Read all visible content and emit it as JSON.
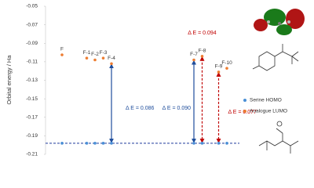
{
  "chart_data": {
    "type": "scatter",
    "y_label": "Orbital energy / Ha",
    "ylim": [
      -0.05,
      -0.21
    ],
    "yticks": [
      -0.05,
      -0.07,
      -0.09,
      -0.11,
      -0.13,
      -0.15,
      -0.17,
      -0.19,
      -0.21
    ],
    "categories": [
      "F",
      null,
      null,
      "F-1",
      "F-2",
      "F-3",
      "F-4",
      null,
      null,
      null,
      null,
      null,
      null,
      null,
      null,
      null,
      "F-7",
      "F-8",
      null,
      "F-9",
      "F-10"
    ],
    "series": [
      {
        "name": "Serine HOMO",
        "color": "#4a8fd6",
        "values": [
          -0.198,
          null,
          null,
          -0.198,
          -0.198,
          -0.198,
          -0.198,
          null,
          null,
          null,
          null,
          null,
          null,
          null,
          null,
          null,
          -0.198,
          -0.198,
          null,
          -0.198,
          -0.198
        ]
      },
      {
        "name": "Analogue LUMO",
        "color": "#ed7d31",
        "values": [
          -0.1025,
          null,
          null,
          -0.106,
          -0.108,
          -0.106,
          -0.112,
          null,
          null,
          null,
          null,
          null,
          null,
          null,
          null,
          null,
          -0.108,
          -0.104,
          null,
          -0.121,
          -0.117
        ]
      }
    ],
    "delta_labels": [
      null,
      null,
      null,
      null,
      null,
      null,
      "Δ E = 0.086",
      null,
      null,
      null,
      null,
      null,
      null,
      null,
      null,
      null,
      "Δ E = 0.090",
      "Δ E = 0.094",
      null,
      "Δ E = 0.077",
      null
    ],
    "delta_colors": [
      null,
      null,
      null,
      null,
      null,
      null,
      "#1f4e9c",
      null,
      null,
      null,
      null,
      null,
      null,
      null,
      null,
      null,
      "#1f4e9c",
      "#c00000",
      null,
      "#c00000",
      null
    ],
    "homo_line_color": "#1f3a9c",
    "legend": "right"
  }
}
